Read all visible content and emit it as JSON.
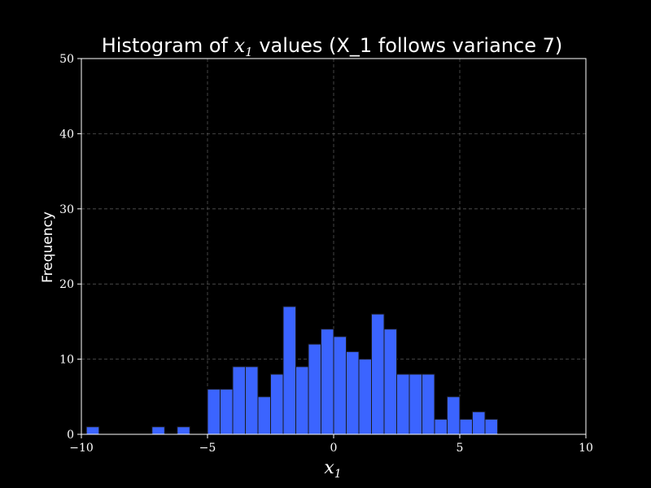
{
  "chart_data": {
    "type": "bar",
    "title": "Histogram of x₁ values (X_1 follows variance 7)",
    "title_parts": {
      "prefix": "Histogram of ",
      "math_var": "x",
      "math_sub": "1",
      "suffix": " values (X_1 follows variance 7)"
    },
    "xlabel": "x₁",
    "xlabel_parts": {
      "var": "x",
      "sub": "1"
    },
    "ylabel": "Frequency",
    "xlim": [
      -10,
      10
    ],
    "ylim": [
      0,
      50
    ],
    "xticks": [
      -10,
      -5,
      0,
      5,
      10
    ],
    "xtick_labels": [
      "−10",
      "−5",
      "0",
      "5",
      "10"
    ],
    "yticks": [
      0,
      10,
      20,
      30,
      40,
      50
    ],
    "ytick_labels": [
      "0",
      "10",
      "20",
      "30",
      "40",
      "50"
    ],
    "grid": true,
    "bin_width": 0.5,
    "bins": [
      {
        "x0": -9.8,
        "count": 1
      },
      {
        "x0": -7.2,
        "count": 1
      },
      {
        "x0": -6.2,
        "count": 1
      },
      {
        "x0": -5.0,
        "count": 6
      },
      {
        "x0": -4.5,
        "count": 6
      },
      {
        "x0": -4.0,
        "count": 9
      },
      {
        "x0": -3.5,
        "count": 9
      },
      {
        "x0": -3.0,
        "count": 5
      },
      {
        "x0": -2.5,
        "count": 8
      },
      {
        "x0": -2.0,
        "count": 17
      },
      {
        "x0": -1.5,
        "count": 9
      },
      {
        "x0": -1.0,
        "count": 12
      },
      {
        "x0": -0.5,
        "count": 14
      },
      {
        "x0": 0.0,
        "count": 13
      },
      {
        "x0": 0.5,
        "count": 11
      },
      {
        "x0": 1.0,
        "count": 10
      },
      {
        "x0": 1.5,
        "count": 16
      },
      {
        "x0": 2.0,
        "count": 14
      },
      {
        "x0": 2.5,
        "count": 8
      },
      {
        "x0": 3.0,
        "count": 8
      },
      {
        "x0": 3.5,
        "count": 8
      },
      {
        "x0": 4.0,
        "count": 2
      },
      {
        "x0": 4.5,
        "count": 5
      },
      {
        "x0": 5.0,
        "count": 2
      },
      {
        "x0": 5.5,
        "count": 3
      },
      {
        "x0": 6.0,
        "count": 2
      }
    ]
  },
  "colors": {
    "background": "#000000",
    "bar_fill": "#3b64ff",
    "bar_edge": "#1a1a1a",
    "axis": "#ffffff",
    "grid": "#555555"
  }
}
